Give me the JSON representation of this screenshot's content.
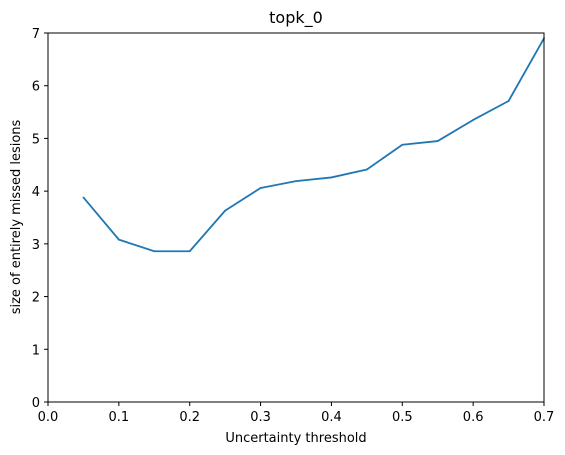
{
  "chart_data": {
    "type": "line",
    "title": "topk_0",
    "xlabel": "Uncertainty threshold",
    "ylabel": "size of entirely missed lesions",
    "xlim": [
      0.0,
      0.7
    ],
    "ylim": [
      0,
      7
    ],
    "xticks": [
      "0.0",
      "0.1",
      "0.2",
      "0.3",
      "0.4",
      "0.5",
      "0.6",
      "0.7"
    ],
    "yticks": [
      "0",
      "1",
      "2",
      "3",
      "4",
      "5",
      "6",
      "7"
    ],
    "grid": false,
    "series": [
      {
        "color": "#1f77b4",
        "x": [
          0.05,
          0.1,
          0.15,
          0.2,
          0.25,
          0.3,
          0.35,
          0.4,
          0.45,
          0.5,
          0.55,
          0.6,
          0.65,
          0.7
        ],
        "y": [
          3.88,
          3.08,
          2.86,
          2.86,
          3.63,
          4.06,
          4.19,
          4.26,
          4.41,
          4.88,
          4.95,
          5.35,
          5.71,
          6.9
        ]
      }
    ]
  }
}
